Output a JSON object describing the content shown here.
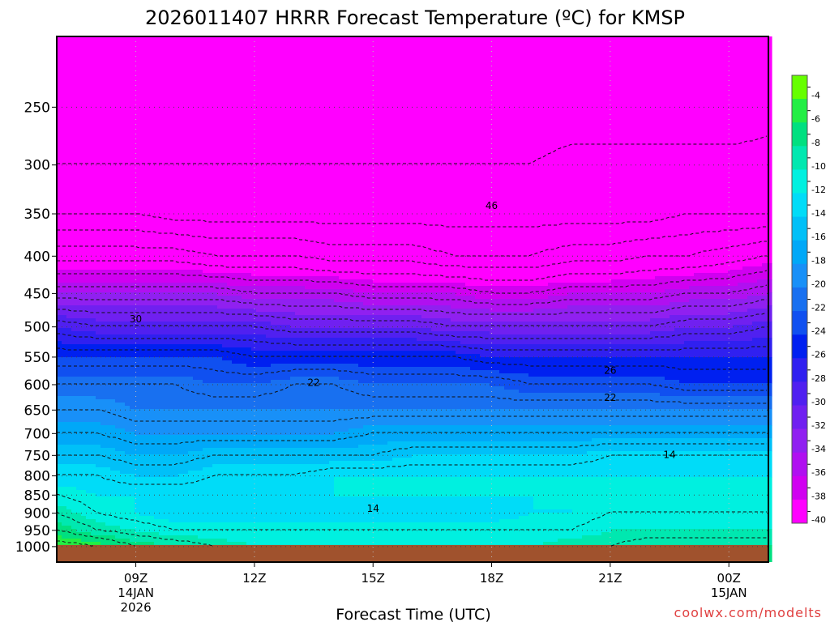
{
  "chart_data": {
    "type": "heatmap",
    "title": "2026011407 HRRR Forecast Temperature (ºC) for KMSP",
    "xlabel": "Forecast Time (UTC)",
    "ylabel": "",
    "y_scale": "log",
    "y_inverted": true,
    "ylim": [
      1050,
      200
    ],
    "xlim": [
      "2026-01-14 07Z",
      "2026-01-15 01Z"
    ],
    "y_ticks": [
      "250",
      "300",
      "350",
      "400",
      "450",
      "500",
      "550",
      "600",
      "650",
      "700",
      "750",
      "800",
      "850",
      "900",
      "950",
      "1000"
    ],
    "x_ticks": [
      {
        "time": "2026-01-14 09Z",
        "label": "09Z",
        "sub1": "14JAN",
        "sub2": "2026"
      },
      {
        "time": "2026-01-14 12Z",
        "label": "12Z",
        "sub1": "",
        "sub2": ""
      },
      {
        "time": "2026-01-14 15Z",
        "label": "15Z",
        "sub1": "",
        "sub2": ""
      },
      {
        "time": "2026-01-14 18Z",
        "label": "18Z",
        "sub1": "",
        "sub2": ""
      },
      {
        "time": "2026-01-14 21Z",
        "label": "21Z",
        "sub1": "",
        "sub2": ""
      },
      {
        "time": "2026-01-15 00Z",
        "label": "00Z",
        "sub1": "15JAN",
        "sub2": ""
      }
    ],
    "grid": true,
    "colorbar": {
      "position": "right",
      "levels": [
        "-4",
        "-6",
        "-8",
        "-10",
        "-12",
        "-14",
        "-16",
        "-18",
        "-20",
        "-22",
        "-24",
        "-26",
        "-28",
        "-30",
        "-32",
        "-34",
        "-36",
        "-38",
        "-40"
      ],
      "colors": [
        "#66ff00",
        "#22ee44",
        "#00e080",
        "#00e8b0",
        "#00f0e0",
        "#00dcf8",
        "#00c0f8",
        "#00a8f8",
        "#1890f8",
        "#1870f0",
        "#1050f0",
        "#0020f0",
        "#3020f0",
        "#5020f0",
        "#7020f0",
        "#9020f0",
        "#b010f0",
        "#d000f0",
        "#ff00ff"
      ]
    },
    "x_hours": [
      7,
      8,
      9,
      10,
      11,
      12,
      13,
      14,
      15,
      16,
      17,
      18,
      19,
      20,
      21,
      22,
      23,
      24,
      25
    ],
    "temperature_profiles": [
      {
        "pressure": 1000,
        "values": [
          -5,
          -6,
          -8,
          -9,
          -10,
          -11,
          -11,
          -11,
          -11,
          -11,
          -11,
          -11,
          -11,
          -10,
          -10,
          -9,
          -9,
          -9,
          -9
        ]
      },
      {
        "pressure": 950,
        "values": [
          -8,
          -10,
          -11,
          -12,
          -12,
          -12,
          -12,
          -12,
          -12,
          -12,
          -12,
          -12,
          -12,
          -12,
          -11,
          -11,
          -11,
          -11,
          -11
        ]
      },
      {
        "pressure": 900,
        "values": [
          -10,
          -12,
          -13,
          -14,
          -14,
          -14,
          -14,
          -14,
          -14,
          -14,
          -14,
          -14,
          -13,
          -13,
          -12,
          -12,
          -12,
          -12,
          -12
        ]
      },
      {
        "pressure": 850,
        "values": [
          -12,
          -13,
          -13,
          -13,
          -13,
          -13,
          -13,
          -13,
          -13,
          -13,
          -13,
          -13,
          -13,
          -13,
          -13,
          -13,
          -13,
          -13,
          -13
        ]
      },
      {
        "pressure": 800,
        "values": [
          -14,
          -14,
          -15,
          -15,
          -14,
          -14,
          -14,
          -13,
          -13,
          -13,
          -13,
          -13,
          -13,
          -13,
          -13,
          -13,
          -13,
          -13,
          -13
        ]
      },
      {
        "pressure": 750,
        "values": [
          -16,
          -16,
          -17,
          -17,
          -16,
          -16,
          -16,
          -16,
          -16,
          -15,
          -15,
          -15,
          -15,
          -15,
          -14,
          -14,
          -14,
          -14,
          -14
        ]
      },
      {
        "pressure": 700,
        "values": [
          -18,
          -18,
          -19,
          -19,
          -19,
          -19,
          -19,
          -19,
          -18,
          -18,
          -18,
          -18,
          -18,
          -18,
          -18,
          -18,
          -18,
          -18,
          -18
        ]
      },
      {
        "pressure": 650,
        "values": [
          -20,
          -20,
          -21,
          -21,
          -21,
          -21,
          -21,
          -21,
          -21,
          -21,
          -21,
          -21,
          -21,
          -21,
          -21,
          -21,
          -21,
          -21,
          -21
        ]
      },
      {
        "pressure": 600,
        "values": [
          -22,
          -22,
          -22,
          -22,
          -23,
          -23,
          -22,
          -22,
          -23,
          -23,
          -23,
          -23,
          -24,
          -24,
          -24,
          -24,
          -25,
          -25,
          -25
        ]
      },
      {
        "pressure": 550,
        "values": [
          -25,
          -25,
          -25,
          -25,
          -25,
          -26,
          -26,
          -26,
          -26,
          -26,
          -26,
          -27,
          -27,
          -27,
          -27,
          -27,
          -27,
          -27,
          -27
        ]
      },
      {
        "pressure": 500,
        "values": [
          -29,
          -30,
          -30,
          -30,
          -30,
          -30,
          -31,
          -31,
          -31,
          -31,
          -32,
          -32,
          -32,
          -32,
          -32,
          -32,
          -31,
          -31,
          -30
        ]
      },
      {
        "pressure": 450,
        "values": [
          -35,
          -35,
          -35,
          -35,
          -35,
          -36,
          -36,
          -36,
          -37,
          -37,
          -37,
          -38,
          -38,
          -37,
          -37,
          -37,
          -36,
          -36,
          -35
        ]
      },
      {
        "pressure": 400,
        "values": [
          -41,
          -41,
          -41,
          -41,
          -42,
          -42,
          -42,
          -43,
          -43,
          -43,
          -44,
          -44,
          -44,
          -43,
          -43,
          -42,
          -42,
          -41,
          -40
        ]
      },
      {
        "pressure": 350,
        "values": [
          -46,
          -46,
          -46,
          -47,
          -47,
          -47,
          -47,
          -47,
          -47,
          -47,
          -47,
          -47,
          -47,
          -47,
          -47,
          -47,
          -46,
          -46,
          -46
        ]
      },
      {
        "pressure": 300,
        "values": [
          -48,
          -48,
          -48,
          -48,
          -48,
          -48,
          -48,
          -48,
          -48,
          -48,
          -48,
          -48,
          -48,
          -47,
          -47,
          -47,
          -47,
          -47,
          -47
        ]
      },
      {
        "pressure": 250,
        "values": [
          -50,
          -50,
          -50,
          -50,
          -50,
          -50,
          -50,
          -50,
          -50,
          -50,
          -50,
          -50,
          -50,
          -50,
          -50,
          -50,
          -50,
          -50,
          -49
        ]
      }
    ],
    "ground_color": "#a0522d",
    "contour_labels": [
      {
        "text": "46",
        "time_hour": 18.0,
        "pressure": 341
      },
      {
        "text": "30",
        "time_hour": 9.0,
        "pressure": 488
      },
      {
        "text": "22",
        "time_hour": 13.5,
        "pressure": 596
      },
      {
        "text": "26",
        "time_hour": 21.0,
        "pressure": 574
      },
      {
        "text": "22",
        "time_hour": 21.0,
        "pressure": 625
      },
      {
        "text": "14",
        "time_hour": 22.5,
        "pressure": 748
      },
      {
        "text": "14",
        "time_hour": 15.0,
        "pressure": 887
      }
    ]
  },
  "credit": "coolwx.com/modelts"
}
